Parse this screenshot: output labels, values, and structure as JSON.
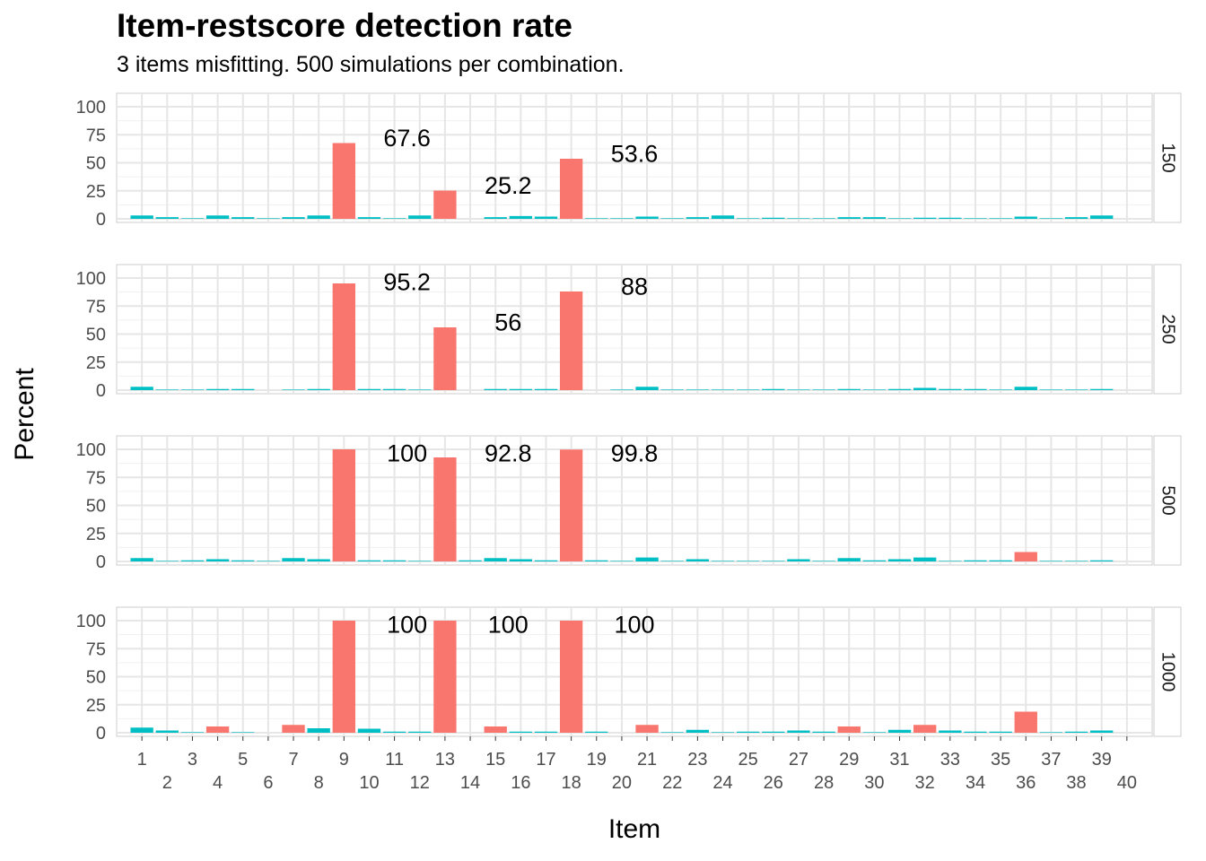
{
  "chart_data": {
    "type": "bar",
    "title": "Item-restscore detection rate",
    "subtitle": "3 items misfitting. 500 simulations per combination.",
    "xlabel": "Item",
    "ylabel": "Percent",
    "ylim": [
      0,
      100
    ],
    "y_ticks": [
      "0",
      "25",
      "50",
      "75",
      "100"
    ],
    "x_range": [
      0,
      41
    ],
    "categories": [
      "1",
      "2",
      "3",
      "4",
      "5",
      "6",
      "7",
      "8",
      "9",
      "10",
      "11",
      "12",
      "13",
      "14",
      "15",
      "16",
      "17",
      "18",
      "19",
      "20",
      "21",
      "22",
      "23",
      "24",
      "25",
      "26",
      "27",
      "28",
      "29",
      "30",
      "31",
      "32",
      "33",
      "34",
      "35",
      "36",
      "37",
      "38",
      "39",
      "40"
    ],
    "grid": true,
    "legend": "none",
    "colors": {
      "flagged": "#F8766D",
      "not_flagged": "#00BFC4",
      "panel_border": "#cccccc",
      "grid": "#e6e6e6"
    },
    "panels": [
      {
        "strip": "150",
        "values": [
          3,
          1.5,
          0.5,
          3,
          1.5,
          0.5,
          1.5,
          3,
          67.6,
          1.5,
          0.5,
          3,
          25.2,
          0,
          1.5,
          2.5,
          2,
          53.6,
          0.5,
          0.5,
          2,
          0.5,
          1.5,
          3,
          0.5,
          1,
          0.5,
          0.5,
          1.5,
          1.5,
          0.5,
          1,
          1,
          0.5,
          0.5,
          2,
          0.5,
          1.5,
          3,
          0
        ],
        "flagged": [
          9,
          13,
          18
        ],
        "labels": [
          {
            "item": 9,
            "text": "67.6"
          },
          {
            "item": 13,
            "text": "25.2"
          },
          {
            "item": 18,
            "text": "53.6"
          }
        ]
      },
      {
        "strip": "250",
        "values": [
          3,
          0.5,
          0.5,
          1,
          1,
          0,
          0.5,
          1,
          95.2,
          1,
          1,
          0.5,
          56,
          0,
          1,
          1,
          1,
          88,
          0,
          0.5,
          3,
          0.5,
          0.5,
          0.5,
          0.5,
          1,
          0.5,
          0.5,
          1,
          0.5,
          1,
          2,
          1,
          1,
          0.5,
          3,
          0.5,
          0.5,
          1,
          0
        ],
        "flagged": [
          9,
          13,
          18
        ],
        "labels": [
          {
            "item": 9,
            "text": "95.2"
          },
          {
            "item": 13,
            "text": "56"
          },
          {
            "item": 18,
            "text": "88"
          }
        ]
      },
      {
        "strip": "500",
        "values": [
          3,
          0.5,
          1,
          2,
          1,
          0.5,
          3,
          2,
          100,
          1,
          1,
          0.5,
          92.8,
          1,
          3,
          2,
          1,
          99.8,
          1,
          0.5,
          3.5,
          0.5,
          2,
          0.5,
          0.5,
          0.5,
          2,
          0.5,
          3,
          1,
          2,
          3.5,
          0.5,
          1,
          1,
          8.4,
          0.5,
          0.5,
          1,
          0
        ],
        "flagged": [
          9,
          13,
          18,
          36
        ],
        "labels": [
          {
            "item": 9,
            "text": "100"
          },
          {
            "item": 13,
            "text": "92.8"
          },
          {
            "item": 18,
            "text": "99.8"
          }
        ]
      },
      {
        "strip": "1000",
        "values": [
          4.6,
          2,
          0.5,
          5.6,
          0.5,
          0,
          7,
          4,
          100,
          3.6,
          1,
          1,
          100,
          0,
          5.6,
          1,
          1,
          100,
          1,
          0,
          7,
          0.5,
          2.6,
          0.5,
          1,
          1,
          2,
          1,
          5.6,
          0.5,
          2.6,
          7,
          2,
          1,
          1,
          18.8,
          0.5,
          1,
          2,
          0
        ],
        "flagged": [
          4,
          7,
          9,
          13,
          15,
          18,
          21,
          29,
          32,
          36
        ],
        "labels": [
          {
            "item": 9,
            "text": "100"
          },
          {
            "item": 13,
            "text": "100"
          },
          {
            "item": 18,
            "text": "100"
          }
        ]
      }
    ]
  }
}
